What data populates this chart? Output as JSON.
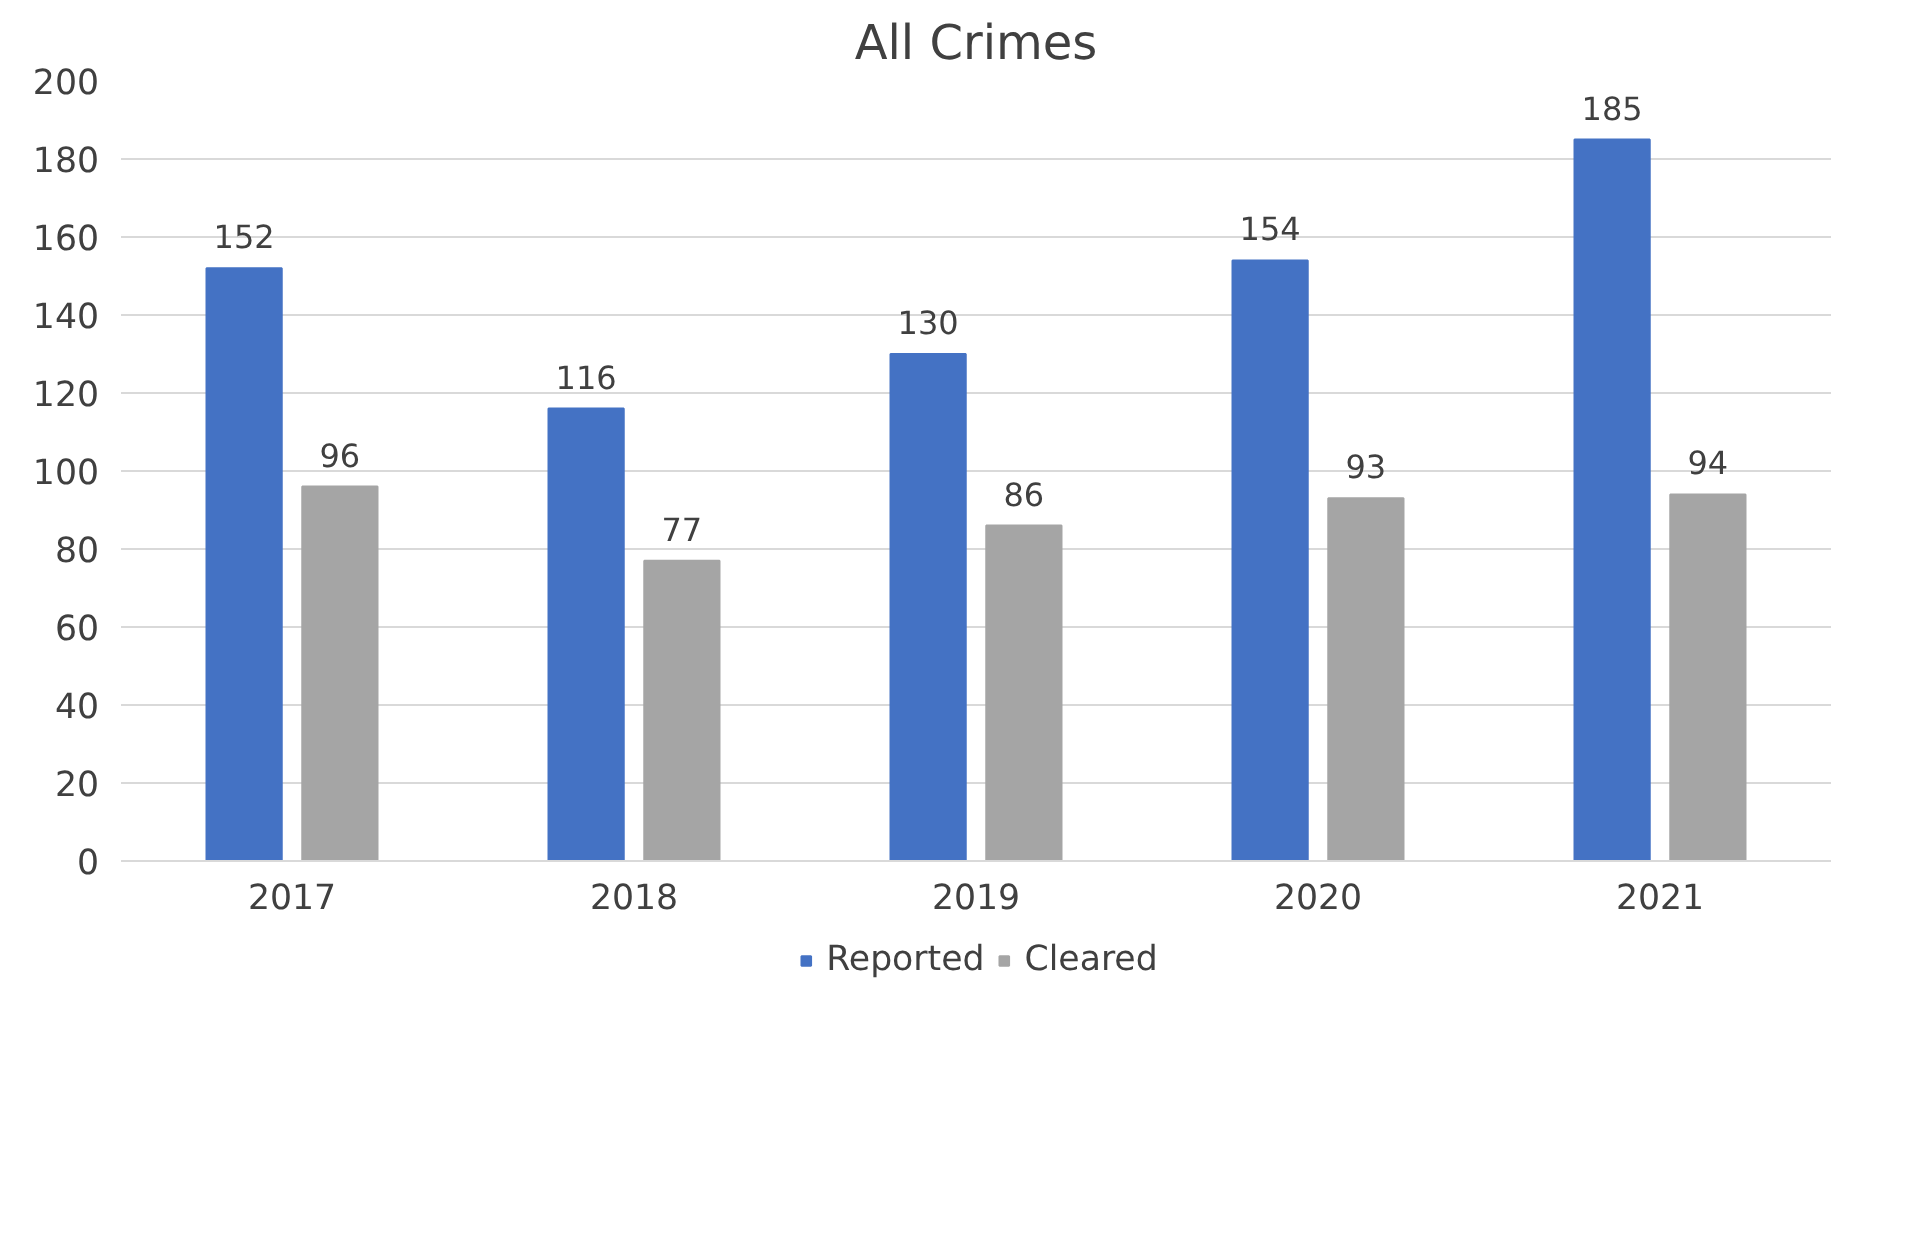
{
  "chart_data": {
    "type": "bar",
    "title": "All Crimes",
    "categories": [
      "2017",
      "2018",
      "2019",
      "2020",
      "2021"
    ],
    "series": [
      {
        "name": "Reported",
        "color": "#4472c4",
        "values": [
          152,
          116,
          130,
          154,
          185
        ]
      },
      {
        "name": "Cleared",
        "color": "#a5a5a5",
        "values": [
          96,
          77,
          86,
          93,
          94
        ]
      }
    ],
    "ylim": [
      0,
      200
    ],
    "yticks": [
      0,
      20,
      40,
      60,
      80,
      100,
      120,
      140,
      160,
      180,
      200
    ],
    "grid": "y",
    "legend": "bottom",
    "data_labels": true
  }
}
